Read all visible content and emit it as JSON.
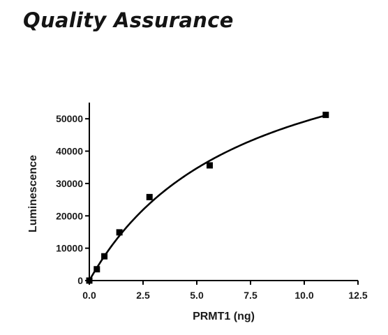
{
  "header": {
    "title": "Quality Assurance"
  },
  "chart_data": {
    "type": "scatter",
    "xlabel": "PRMT1 (ng)",
    "ylabel": "Luminescence",
    "xlim": [
      0,
      12.5
    ],
    "ylim": [
      0,
      55000
    ],
    "x_ticks": [
      0.0,
      2.5,
      5.0,
      7.5,
      10.0,
      12.5
    ],
    "x_tick_labels": [
      "0.0",
      "2.5",
      "5.0",
      "7.5",
      "10.0",
      "12.5"
    ],
    "y_ticks": [
      0,
      10000,
      20000,
      30000,
      40000,
      50000
    ],
    "y_tick_labels": [
      "0",
      "10000",
      "20000",
      "30000",
      "40000",
      "50000"
    ],
    "grid": false,
    "legend": false,
    "series": [
      {
        "marker": "square",
        "x": [
          0.0,
          0.35,
          0.7,
          1.4,
          2.8,
          5.6,
          11.0
        ],
        "y": [
          0,
          3500,
          7500,
          14900,
          25800,
          35600,
          51200
        ]
      }
    ],
    "fit_curve": {
      "model": "hyperbola",
      "vmax": 84000,
      "km": 7.1,
      "color": "#000000"
    }
  }
}
